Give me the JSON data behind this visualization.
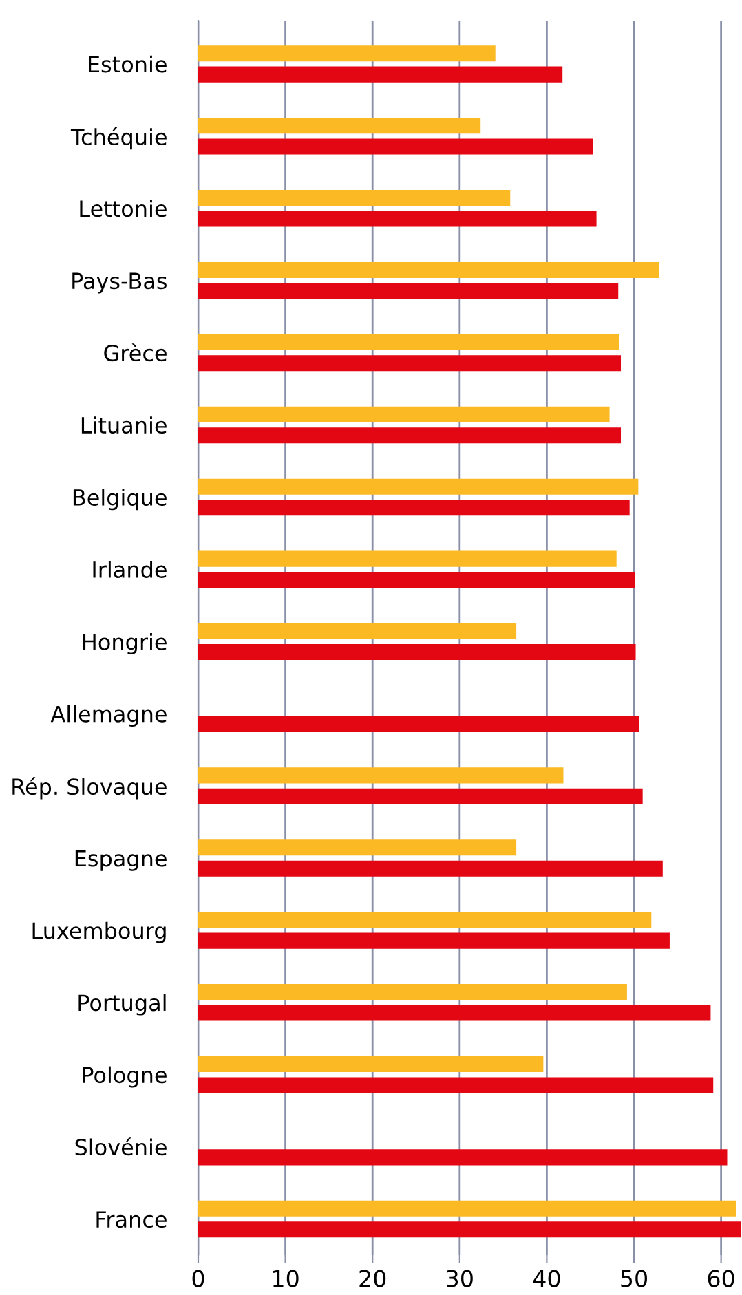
{
  "chart_data": {
    "type": "bar",
    "orientation": "horizontal",
    "categories": [
      "Estonie",
      "Tchéquie",
      "Lettonie",
      "Pays-Bas",
      "Grèce",
      "Lituanie",
      "Belgique",
      "Irlande",
      "Hongrie",
      "Allemagne",
      "Rép. Slovaque",
      "Espagne",
      "Luxembourg",
      "Portugal",
      "Pologne",
      "Slovénie",
      "France"
    ],
    "series": [
      {
        "color": "#fbb923",
        "values": [
          34.1,
          32.4,
          35.8,
          52.9,
          48.3,
          47.2,
          50.5,
          48.0,
          36.5,
          null,
          41.9,
          36.5,
          52.0,
          49.2,
          39.6,
          null,
          61.7
        ]
      },
      {
        "color": "#e30613",
        "values": [
          41.8,
          45.3,
          45.7,
          48.2,
          48.5,
          48.5,
          49.5,
          50.1,
          50.2,
          50.6,
          51.0,
          53.3,
          54.1,
          58.8,
          59.1,
          60.7,
          62.3
        ]
      }
    ],
    "xlim": [
      0,
      62.4
    ],
    "xticks": [
      0,
      10,
      20,
      30,
      40,
      50,
      60
    ],
    "grid": "x",
    "legend": false
  }
}
